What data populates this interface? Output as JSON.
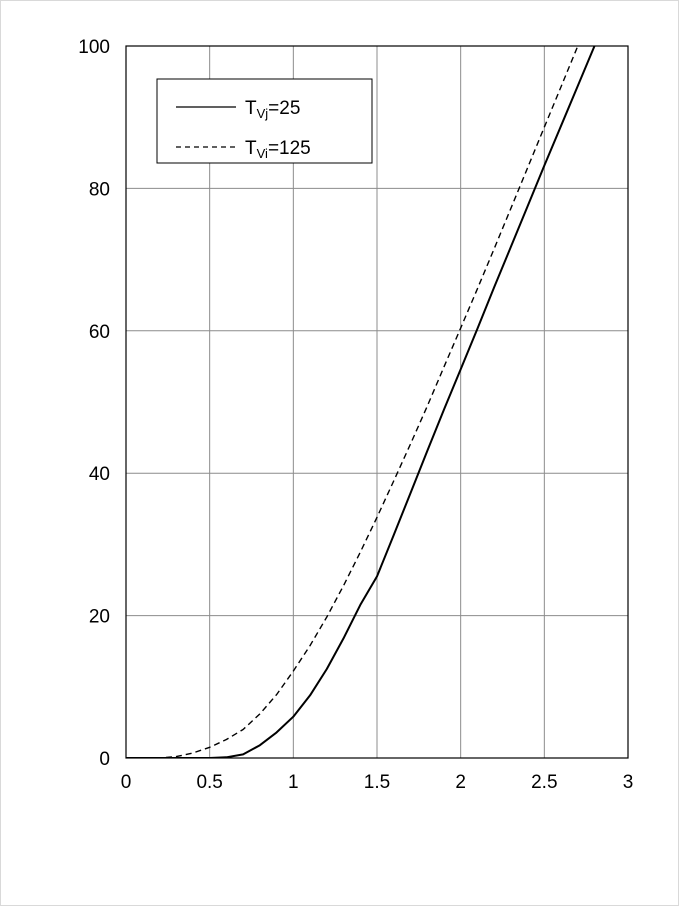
{
  "chart_data": {
    "type": "line",
    "title": "",
    "xlabel": "",
    "ylabel": "",
    "xlim": [
      0,
      3
    ],
    "ylim": [
      0,
      100
    ],
    "x_ticks": [
      0,
      0.5,
      1,
      1.5,
      2,
      2.5,
      3
    ],
    "x_tick_labels": [
      "0",
      "0.5",
      "1",
      "1.5",
      "2",
      "2.5",
      "3"
    ],
    "y_ticks": [
      0,
      20,
      40,
      60,
      80,
      100
    ],
    "y_tick_labels": [
      "0",
      "20",
      "40",
      "60",
      "80",
      "100"
    ],
    "grid": true,
    "legend_position": "top-left",
    "series": [
      {
        "name": "TVj=25",
        "legend_main": "T",
        "legend_sub": "Vj",
        "legend_suffix": "=25",
        "style": "solid",
        "color": "#000000",
        "x": [
          0,
          0.5,
          0.6,
          0.7,
          0.8,
          0.9,
          1.0,
          1.1,
          1.2,
          1.3,
          1.4,
          1.5,
          1.6,
          1.7,
          1.8,
          1.9,
          2.0,
          2.1,
          2.2,
          2.3,
          2.4,
          2.5,
          2.6,
          2.7,
          2.8
        ],
        "y": [
          0,
          0,
          0.1,
          0.5,
          1.8,
          3.6,
          5.8,
          8.8,
          12.5,
          16.8,
          21.5,
          25.5,
          31.3,
          37.2,
          43.1,
          48.9,
          54.6,
          60.3,
          66.1,
          71.8,
          77.5,
          83.2,
          88.8,
          94.4,
          100
        ]
      },
      {
        "name": "TVi=125",
        "legend_main": "T",
        "legend_sub": "Vi",
        "legend_suffix": "=125",
        "style": "dashed",
        "color": "#000000",
        "x": [
          0,
          0.2,
          0.3,
          0.4,
          0.5,
          0.6,
          0.7,
          0.8,
          0.9,
          1.0,
          1.1,
          1.2,
          1.3,
          1.4,
          1.5,
          1.6,
          1.7,
          1.8,
          1.9,
          2.0,
          2.1,
          2.2,
          2.3,
          2.4,
          2.5,
          2.6,
          2.7,
          2.75
        ],
        "y": [
          0,
          0,
          0.2,
          0.7,
          1.5,
          2.6,
          4.0,
          6.2,
          8.9,
          12.2,
          15.8,
          19.8,
          24.2,
          28.9,
          33.8,
          38.9,
          44.1,
          49.4,
          54.9,
          60.4,
          65.9,
          71.5,
          77.2,
          82.9,
          88.6,
          94.3,
          100,
          102.5
        ]
      }
    ]
  }
}
